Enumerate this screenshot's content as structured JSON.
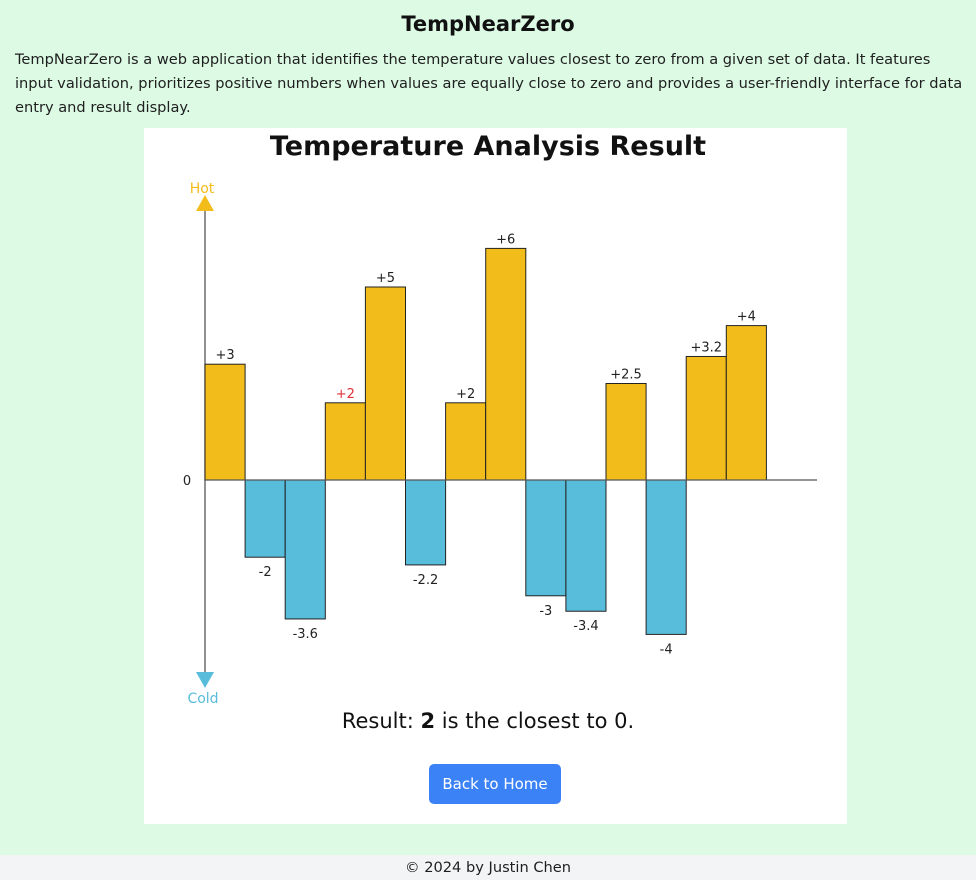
{
  "header": {
    "title": "TempNearZero",
    "description": "TempNearZero is a web application that identifies the temperature values closest to zero from a given set of data. It features input validation, prioritizes positive numbers when values are equally close to zero and provides a user-friendly interface for data entry and result display."
  },
  "result_card": {
    "result_prefix": "Result: ",
    "result_value": "2",
    "result_suffix": " is the closest to 0.",
    "back_button_label": "Back to Home"
  },
  "chart_data": {
    "type": "bar",
    "title": "Temperature Analysis Result",
    "values": [
      3,
      -2,
      -3.6,
      2,
      5,
      -2.2,
      2,
      6,
      -3,
      -3.4,
      2.5,
      -4,
      3.2,
      4
    ],
    "labels": [
      "+3",
      "-2",
      "-3.6",
      "+2",
      "+5",
      "-2.2",
      "+2",
      "+6",
      "-3",
      "-3.4",
      "+2.5",
      "-4",
      "+3.2",
      "+4"
    ],
    "highlight_index": 3,
    "zero_label": "0",
    "axis_top_label": "Hot",
    "axis_bottom_label": "Cold",
    "colors": {
      "positive": "#f2bc1b",
      "negative": "#58bcdb",
      "highlight_label": "#e0303a",
      "hot": "#f2bc1b",
      "cold": "#58bcdb"
    }
  },
  "footer": {
    "text": "© 2024 by Justin Chen"
  }
}
